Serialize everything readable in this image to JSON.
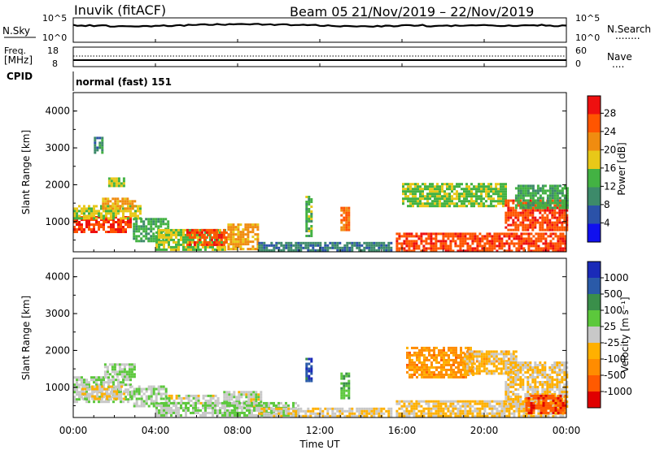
{
  "header": {
    "station": "Inuvik  (fitACF)",
    "beam": "Beam 05",
    "dates": "21/Nov/2019 – 22/Nov/2019"
  },
  "strip1": {
    "left_label": "N.Sky",
    "left_ticks": [
      "10^5",
      "10^0"
    ],
    "right_ticks": [
      "10^5",
      "10^0"
    ],
    "right_label": "N.Search",
    "right_dots": "........"
  },
  "strip2": {
    "left_label_1": "Freq.",
    "left_label_2": "[MHz]",
    "left_ticks": [
      "18",
      "8"
    ],
    "right_ticks": [
      "60",
      "0"
    ],
    "right_label": "Nave",
    "right_dots": "...."
  },
  "cpid": {
    "label": "CPID",
    "value": "normal (fast) 151"
  },
  "x_axis": {
    "ticks": [
      "00:00",
      "04:00",
      "08:00",
      "12:00",
      "16:00",
      "20:00",
      "00:00"
    ],
    "title": "Time UT"
  },
  "colors": {
    "power": [
      "#1010ee",
      "#2b52a8",
      "#3d8a6a",
      "#43b243",
      "#e8c818",
      "#f08c10",
      "#ff5500",
      "#ee1010"
    ],
    "velocity": [
      "#e00000",
      "#ff5a00",
      "#ff8c00",
      "#ffb000",
      "#c8c8c8",
      "#5cc83c",
      "#3a8f4a",
      "#2a5aa8",
      "#1a2ab8"
    ]
  },
  "chart_data": [
    {
      "type": "heatmap",
      "panel": "power",
      "ylabel": "Slant Range [km]",
      "yticks": [
        "4000",
        "3000",
        "2000",
        "1000"
      ],
      "ylim": [
        180,
        4500
      ],
      "xlim_hours": [
        0,
        24
      ],
      "colorbar_label": "Power [dB]",
      "colorbar_ticks": [
        "28",
        "24",
        "20",
        "16",
        "12",
        "8",
        "4"
      ],
      "color_range": [
        0,
        32
      ],
      "blobs": [
        {
          "t0": 0.0,
          "t1": 2.8,
          "r0": 700,
          "r1": 1150,
          "v": 28
        },
        {
          "t0": 0.0,
          "t1": 3.3,
          "r0": 1100,
          "r1": 1450,
          "v": 17
        },
        {
          "t0": 1.4,
          "t1": 3.0,
          "r0": 1350,
          "r1": 1650,
          "v": 21
        },
        {
          "t0": 2.9,
          "t1": 4.6,
          "r0": 500,
          "r1": 1100,
          "v": 13
        },
        {
          "t0": 4.0,
          "t1": 7.4,
          "r0": 250,
          "r1": 800,
          "v": 16
        },
        {
          "t0": 5.5,
          "t1": 7.5,
          "r0": 400,
          "r1": 800,
          "v": 27
        },
        {
          "t0": 7.5,
          "t1": 9.0,
          "r0": 250,
          "r1": 950,
          "v": 21
        },
        {
          "t0": 9.0,
          "t1": 15.5,
          "r0": 200,
          "r1": 450,
          "v": 9
        },
        {
          "t0": 13.0,
          "t1": 13.4,
          "r0": 800,
          "r1": 1400,
          "v": 25
        },
        {
          "t0": 11.3,
          "t1": 11.6,
          "r0": 600,
          "r1": 1700,
          "v": 14
        },
        {
          "t0": 15.7,
          "t1": 24.0,
          "r0": 200,
          "r1": 700,
          "v": 27
        },
        {
          "t0": 16.0,
          "t1": 21.0,
          "r0": 1400,
          "r1": 2050,
          "v": 15
        },
        {
          "t0": 21.0,
          "t1": 24.0,
          "r0": 800,
          "r1": 1600,
          "v": 27
        },
        {
          "t0": 21.5,
          "t1": 24.0,
          "r0": 1400,
          "r1": 2000,
          "v": 13
        },
        {
          "t0": 1.0,
          "t1": 1.4,
          "r0": 2900,
          "r1": 3300,
          "v": 10
        },
        {
          "t0": 1.7,
          "t1": 2.5,
          "r0": 2000,
          "r1": 2200,
          "v": 16
        }
      ]
    },
    {
      "type": "heatmap",
      "panel": "velocity",
      "ylabel": "Slant Range [km]",
      "yticks": [
        "4000",
        "3000",
        "2000",
        "1000"
      ],
      "ylim": [
        180,
        4500
      ],
      "xlim_hours": [
        0,
        24
      ],
      "colorbar_label": "Velocity  [m s⁻¹]",
      "colorbar_ticks": [
        "1000",
        "500",
        "100",
        "25",
        "-25",
        "-100",
        "-500",
        "-1000"
      ],
      "color_range": [
        -1000,
        1000
      ],
      "blobs": [
        {
          "t0": 0.0,
          "t1": 2.8,
          "r0": 600,
          "r1": 1300,
          "v": 60
        },
        {
          "t0": 0.4,
          "t1": 2.5,
          "r0": 700,
          "r1": 1050,
          "v": -60
        },
        {
          "t0": 1.5,
          "t1": 3.0,
          "r0": 1300,
          "r1": 1650,
          "v": 100
        },
        {
          "t0": 2.8,
          "t1": 4.5,
          "r0": 500,
          "r1": 1050,
          "v": 80
        },
        {
          "t0": 4.5,
          "t1": 7.0,
          "r0": 600,
          "r1": 800,
          "v": 0
        },
        {
          "t0": 7.3,
          "t1": 9.2,
          "r0": 500,
          "r1": 900,
          "v": 0
        },
        {
          "t0": 4.0,
          "t1": 11.0,
          "r0": 250,
          "r1": 600,
          "v": 120
        },
        {
          "t0": 9.0,
          "t1": 15.5,
          "r0": 200,
          "r1": 450,
          "v": -90
        },
        {
          "t0": 11.3,
          "t1": 11.6,
          "r0": 1200,
          "r1": 1800,
          "v": 700
        },
        {
          "t0": 13.0,
          "t1": 13.4,
          "r0": 700,
          "r1": 1400,
          "v": 300
        },
        {
          "t0": 15.7,
          "t1": 24.0,
          "r0": 200,
          "r1": 650,
          "v": -150
        },
        {
          "t0": 16.2,
          "t1": 19.5,
          "r0": 1300,
          "r1": 2100,
          "v": -400
        },
        {
          "t0": 19.0,
          "t1": 21.5,
          "r0": 1400,
          "r1": 2000,
          "v": -200
        },
        {
          "t0": 21.0,
          "t1": 24.0,
          "r0": 500,
          "r1": 1700,
          "v": -120
        },
        {
          "t0": 22.0,
          "t1": 24.0,
          "r0": 300,
          "r1": 800,
          "v": -700
        }
      ]
    }
  ]
}
